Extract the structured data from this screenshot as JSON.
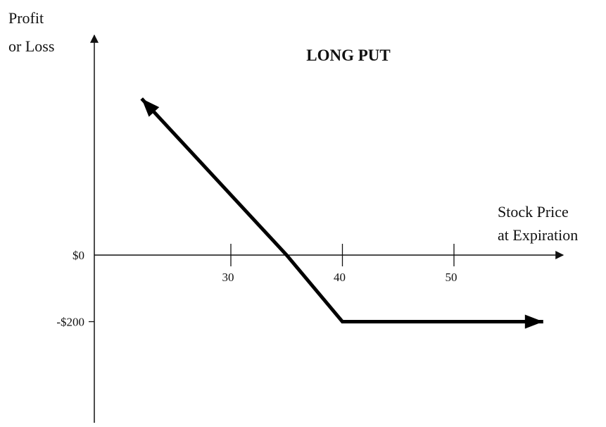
{
  "chart_data": {
    "type": "line",
    "title": "LONG PUT",
    "ylabel": [
      "Profit",
      "or Loss"
    ],
    "xlabel": [
      "Stock Price",
      "at Expiration"
    ],
    "x_ticks": [
      30,
      40,
      50
    ],
    "x_tick_labels": [
      "30",
      "40",
      "50"
    ],
    "y_ticks": [
      0,
      -200
    ],
    "y_tick_labels": [
      "$0",
      "-$200"
    ],
    "xlim": [
      18,
      60
    ],
    "ylim": [
      -450,
      560
    ],
    "series": [
      {
        "x": [
          22,
          35,
          40,
          58
        ],
        "y": [
          470,
          0,
          -200,
          -200
        ]
      }
    ],
    "grid": false,
    "legend": "none"
  }
}
